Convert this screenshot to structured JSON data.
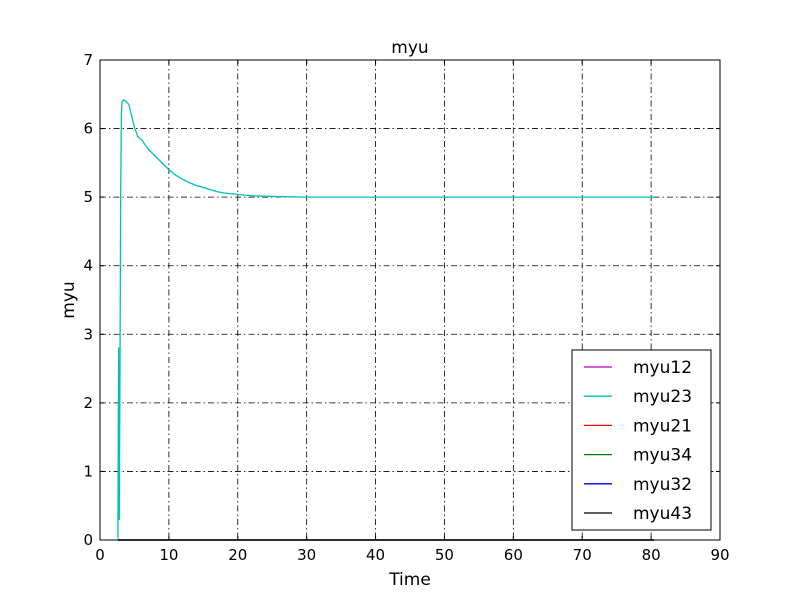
{
  "chart_data": {
    "type": "line",
    "title": "myu",
    "xlabel": "Time",
    "ylabel": "myu",
    "xlim": [
      0,
      90
    ],
    "ylim": [
      0,
      7
    ],
    "xticks": [
      0,
      10,
      20,
      30,
      40,
      50,
      60,
      70,
      80,
      90
    ],
    "yticks": [
      0,
      1,
      2,
      3,
      4,
      5,
      6,
      7
    ],
    "grid": true,
    "grid_style": "dash-dot",
    "legend_position": "lower-right",
    "series": [
      {
        "name": "myu12",
        "color": "#bf00bf",
        "x": [
          2.6,
          80.4
        ],
        "y": [
          0,
          0
        ]
      },
      {
        "name": "myu23",
        "color": "#00bfbf",
        "x": [
          2.6,
          2.7,
          2.8,
          2.9,
          3.0,
          3.1,
          3.2,
          3.4,
          3.6,
          3.9,
          4.2,
          4.6,
          5.0,
          5.5,
          6.0,
          7.0,
          8.0,
          9.0,
          10.0,
          11.0,
          12.0,
          13.0,
          14.0,
          15.0,
          16.0,
          17.0,
          18.0,
          20.0,
          22.0,
          25.0,
          30.0,
          40.0,
          50.0,
          60.0,
          70.0,
          80.4
        ],
        "y": [
          0.02,
          2.8,
          0.3,
          2.5,
          5.0,
          6.2,
          6.39,
          6.42,
          6.41,
          6.38,
          6.35,
          6.18,
          6.02,
          5.88,
          5.84,
          5.7,
          5.6,
          5.5,
          5.4,
          5.32,
          5.26,
          5.21,
          5.17,
          5.14,
          5.11,
          5.08,
          5.06,
          5.04,
          5.02,
          5.01,
          5.0,
          5.0,
          5.0,
          5.0,
          5.0,
          5.0
        ]
      },
      {
        "name": "myu21",
        "color": "#ff0000",
        "x": [
          2.6,
          80.4
        ],
        "y": [
          0,
          0
        ]
      },
      {
        "name": "myu34",
        "color": "#008000",
        "x": [
          2.6,
          80.4
        ],
        "y": [
          0,
          0
        ]
      },
      {
        "name": "myu32",
        "color": "#0000ff",
        "x": [
          2.6,
          80.4
        ],
        "y": [
          0,
          0
        ]
      },
      {
        "name": "myu43",
        "color": "#000000",
        "x": [
          2.6,
          80.4
        ],
        "y": [
          0,
          0
        ]
      }
    ]
  }
}
